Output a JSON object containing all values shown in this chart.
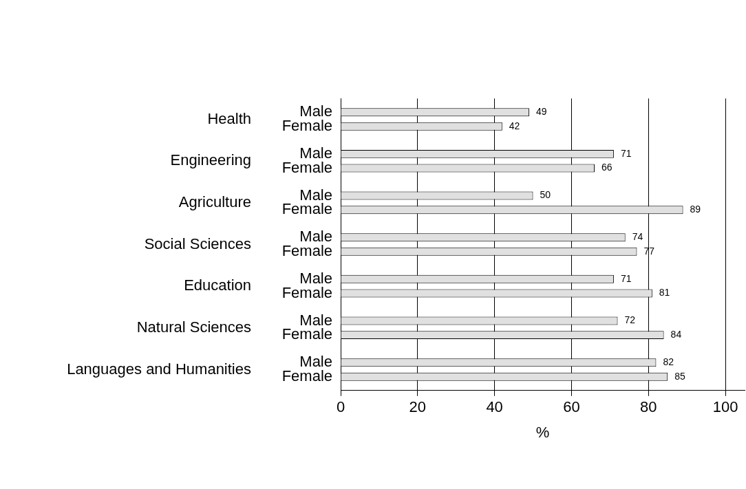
{
  "chart_data": {
    "type": "bar",
    "orientation": "horizontal",
    "xlabel": "%",
    "categories": [
      "Health",
      "Engineering",
      "Agriculture",
      "Social Sciences",
      "Education",
      "Natural Sciences",
      "Languages and Humanities"
    ],
    "series": [
      {
        "name": "Male",
        "color": "#e0e0e0",
        "values": [
          49,
          71,
          50,
          74,
          71,
          72,
          82
        ]
      },
      {
        "name": "Female",
        "color": "#e0e0e0",
        "values": [
          42,
          66,
          89,
          77,
          81,
          84,
          85
        ]
      }
    ],
    "xlim": [
      0,
      105
    ],
    "xticks": [
      0,
      20,
      40,
      60,
      80,
      100
    ],
    "grid": "x",
    "legend": false,
    "data_labels": true
  }
}
